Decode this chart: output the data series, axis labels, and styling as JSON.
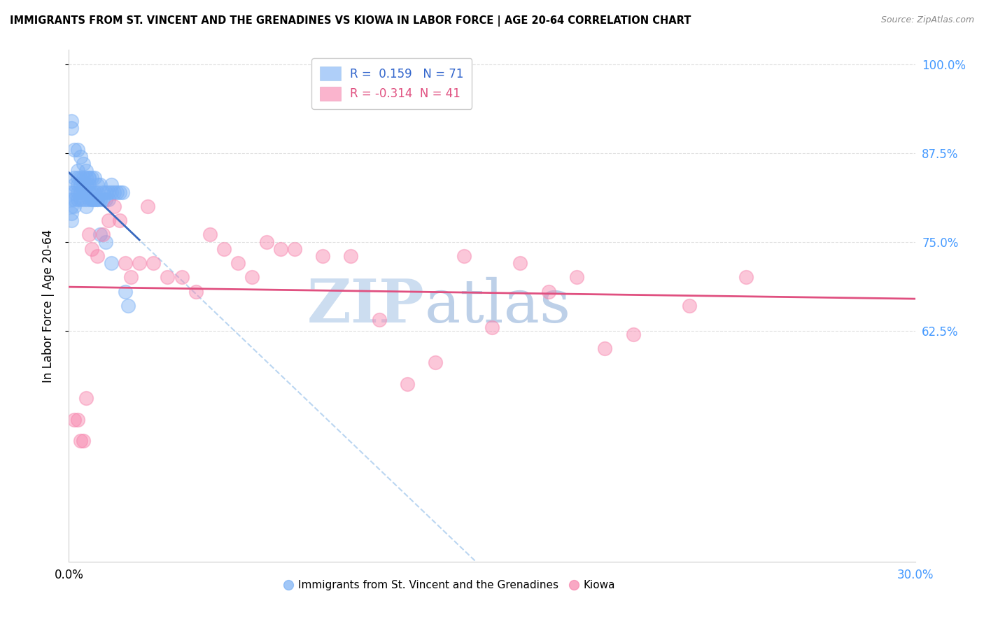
{
  "title": "IMMIGRANTS FROM ST. VINCENT AND THE GRENADINES VS KIOWA IN LABOR FORCE | AGE 20-64 CORRELATION CHART",
  "source": "Source: ZipAtlas.com",
  "ylabel": "In Labor Force | Age 20-64",
  "xlim": [
    0.0,
    0.3
  ],
  "ylim": [
    0.3,
    1.02
  ],
  "yticks": [
    0.625,
    0.75,
    0.875,
    1.0
  ],
  "ytick_labels": [
    "62.5%",
    "75.0%",
    "87.5%",
    "100.0%"
  ],
  "xticks": [
    0.0,
    0.05,
    0.1,
    0.15,
    0.2,
    0.25,
    0.3
  ],
  "blue_R": 0.159,
  "blue_N": 71,
  "pink_R": -0.314,
  "pink_N": 41,
  "blue_color": "#7ab0f5",
  "pink_color": "#f783ac",
  "blue_line_color": "#3a6abf",
  "pink_line_color": "#e05080",
  "blue_dash_color": "#aaccee",
  "blue_scatter_x": [
    0.001,
    0.001,
    0.001,
    0.001,
    0.001,
    0.002,
    0.002,
    0.002,
    0.002,
    0.002,
    0.003,
    0.003,
    0.003,
    0.003,
    0.003,
    0.004,
    0.004,
    0.004,
    0.004,
    0.005,
    0.005,
    0.005,
    0.005,
    0.006,
    0.006,
    0.006,
    0.006,
    0.007,
    0.007,
    0.007,
    0.007,
    0.008,
    0.008,
    0.008,
    0.009,
    0.009,
    0.009,
    0.01,
    0.01,
    0.01,
    0.011,
    0.011,
    0.012,
    0.012,
    0.013,
    0.013,
    0.014,
    0.014,
    0.015,
    0.015,
    0.016,
    0.017,
    0.018,
    0.019,
    0.001,
    0.001,
    0.002,
    0.003,
    0.004,
    0.005,
    0.006,
    0.006,
    0.007,
    0.008,
    0.009,
    0.01,
    0.011,
    0.013,
    0.015,
    0.02,
    0.021
  ],
  "blue_scatter_y": [
    0.82,
    0.81,
    0.8,
    0.79,
    0.78,
    0.84,
    0.83,
    0.82,
    0.81,
    0.8,
    0.85,
    0.84,
    0.83,
    0.82,
    0.81,
    0.84,
    0.83,
    0.82,
    0.81,
    0.84,
    0.83,
    0.82,
    0.81,
    0.83,
    0.82,
    0.81,
    0.8,
    0.84,
    0.83,
    0.82,
    0.81,
    0.84,
    0.82,
    0.81,
    0.84,
    0.82,
    0.81,
    0.83,
    0.82,
    0.81,
    0.83,
    0.81,
    0.82,
    0.81,
    0.82,
    0.81,
    0.82,
    0.81,
    0.83,
    0.82,
    0.82,
    0.82,
    0.82,
    0.82,
    0.92,
    0.91,
    0.88,
    0.88,
    0.87,
    0.86,
    0.85,
    0.84,
    0.84,
    0.81,
    0.81,
    0.81,
    0.76,
    0.75,
    0.72,
    0.68,
    0.66
  ],
  "pink_scatter_x": [
    0.002,
    0.003,
    0.004,
    0.005,
    0.006,
    0.007,
    0.008,
    0.01,
    0.012,
    0.014,
    0.016,
    0.018,
    0.02,
    0.022,
    0.025,
    0.028,
    0.03,
    0.035,
    0.04,
    0.045,
    0.05,
    0.055,
    0.06,
    0.065,
    0.07,
    0.075,
    0.08,
    0.09,
    0.1,
    0.11,
    0.12,
    0.13,
    0.14,
    0.15,
    0.16,
    0.17,
    0.18,
    0.19,
    0.2,
    0.22,
    0.24
  ],
  "pink_scatter_y": [
    0.5,
    0.5,
    0.47,
    0.47,
    0.53,
    0.76,
    0.74,
    0.73,
    0.76,
    0.78,
    0.8,
    0.78,
    0.72,
    0.7,
    0.72,
    0.8,
    0.72,
    0.7,
    0.7,
    0.68,
    0.76,
    0.74,
    0.72,
    0.7,
    0.75,
    0.74,
    0.74,
    0.73,
    0.73,
    0.64,
    0.55,
    0.58,
    0.73,
    0.63,
    0.72,
    0.68,
    0.7,
    0.6,
    0.62,
    0.66,
    0.7
  ],
  "watermark_zip": "ZIP",
  "watermark_atlas": "atlas",
  "watermark_color_zip": "#c8dff5",
  "watermark_color_atlas": "#b8cfe8",
  "background_color": "#ffffff",
  "grid_color": "#dddddd"
}
